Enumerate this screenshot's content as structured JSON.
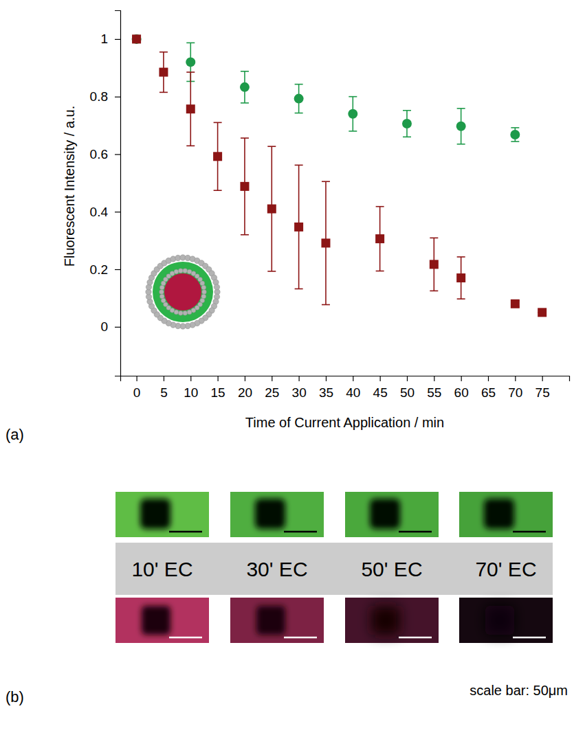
{
  "chart_data": {
    "type": "scatter",
    "x_label": "Time of Current Application / min",
    "y_label": "Fluorescent Intensity / a.u.",
    "xlim": [
      -3,
      80
    ],
    "xticks": [
      0,
      5,
      10,
      15,
      20,
      25,
      30,
      35,
      40,
      45,
      50,
      55,
      60,
      65,
      70,
      75
    ],
    "ylim": [
      -0.17,
      1.1
    ],
    "yticks": [
      0,
      0.2,
      0.4,
      0.6,
      0.8,
      1
    ],
    "grid": false,
    "series": [
      {
        "color": "#1e9a4a",
        "marker": "circle",
        "x": [
          0,
          10,
          20,
          30,
          40,
          50,
          60,
          70
        ],
        "values": [
          1.0,
          0.92,
          0.833,
          0.793,
          0.74,
          0.706,
          0.697,
          0.668
        ],
        "errors": [
          0.01,
          0.067,
          0.055,
          0.05,
          0.06,
          0.046,
          0.062,
          0.024
        ]
      },
      {
        "color": "#8c1515",
        "marker": "square",
        "x": [
          0,
          5,
          10,
          15,
          20,
          25,
          30,
          35,
          45,
          55,
          60,
          70,
          75
        ],
        "values": [
          1.0,
          0.885,
          0.757,
          0.592,
          0.488,
          0.41,
          0.347,
          0.291,
          0.306,
          0.217,
          0.17,
          0.08,
          0.05
        ],
        "errors": [
          0.01,
          0.07,
          0.128,
          0.118,
          0.168,
          0.217,
          0.215,
          0.214,
          0.112,
          0.092,
          0.073,
          0.01,
          0.0
        ]
      }
    ]
  },
  "figure": {
    "panel_labels": [
      "(a)",
      "(b)"
    ],
    "time_labels": [
      "10' EC",
      "30' EC",
      "50' EC",
      "70' EC"
    ],
    "scale_bar_label": "scale bar: 50μm"
  }
}
